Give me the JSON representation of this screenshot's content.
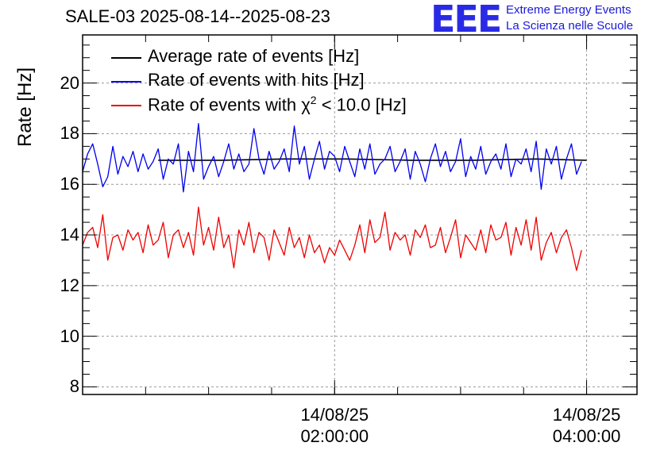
{
  "header": {
    "title": "SALE-03 2025-08-14--2025-08-23",
    "logo": "EEE",
    "org_line1": "Extreme Energy Events",
    "org_line2": "La Scienza nelle Scuole"
  },
  "colors": {
    "average": "#000000",
    "hits": "#0000ee",
    "chi2": "#ee0000",
    "logo": "#2a2ae6"
  },
  "chart_data": {
    "type": "line",
    "title": "SALE-03 2025-08-14--2025-08-23",
    "ylabel": "Rate [Hz]",
    "xlabel": "",
    "ylim": [
      7.7,
      21.9
    ],
    "x_unit": "hours since 2025-08-14 00:00",
    "xlim": [
      0,
      4.4
    ],
    "yticks": [
      "8",
      "10",
      "12",
      "14",
      "16",
      "18",
      "20"
    ],
    "xticks": [
      {
        "date": "14/08/25",
        "time": "02:00:00",
        "hour": 2
      },
      {
        "date": "14/08/25",
        "time": "04:00:00",
        "hour": 4
      }
    ],
    "grid": true,
    "legend_position": "top-left",
    "series": [
      {
        "name": "Average rate of events [Hz]",
        "color": "#000000",
        "x": [
          0.6,
          1.1,
          1.6,
          2.1,
          2.6,
          3.1,
          3.6,
          4.0
        ],
        "values": [
          16.95,
          16.95,
          17.0,
          17.0,
          16.95,
          16.95,
          17.0,
          16.95
        ]
      },
      {
        "name": "Rate of events with hits [Hz]",
        "color": "#0000ee",
        "x_start": 0,
        "x_step": 0.04,
        "values": [
          16.5,
          17.2,
          17.6,
          16.8,
          15.9,
          16.3,
          17.5,
          16.4,
          17.1,
          16.7,
          17.3,
          16.5,
          17.2,
          16.6,
          16.9,
          17.4,
          16.2,
          17.0,
          16.8,
          17.6,
          15.7,
          17.3,
          16.5,
          18.4,
          16.2,
          16.7,
          17.1,
          16.3,
          16.9,
          17.6,
          16.6,
          17.2,
          16.5,
          16.8,
          18.2,
          17.0,
          16.4,
          17.3,
          16.6,
          16.9,
          17.4,
          16.5,
          18.3,
          16.8,
          17.5,
          16.2,
          17.0,
          17.7,
          16.6,
          17.3,
          17.1,
          16.5,
          17.5,
          16.9,
          16.3,
          17.4,
          16.6,
          17.6,
          16.4,
          16.8,
          17.0,
          17.5,
          16.5,
          16.9,
          17.4,
          16.2,
          17.3,
          16.8,
          16.1,
          17.0,
          17.6,
          16.7,
          17.3,
          16.5,
          16.9,
          17.8,
          16.3,
          17.1,
          16.6,
          17.5,
          16.4,
          16.9,
          17.2,
          16.6,
          17.6,
          16.3,
          17.0,
          16.8,
          17.4,
          16.5,
          17.7,
          15.8,
          17.4,
          16.8,
          17.5,
          16.2,
          17.0,
          17.6,
          16.4,
          16.9
        ]
      },
      {
        "name": "Rate of events with χ² < 10.0 [Hz]",
        "label_prefix": "Rate of events with ",
        "label_chi": "χ",
        "label_sup": "2",
        "label_suffix": " < 10.0 [Hz]",
        "color": "#ee0000",
        "x_start": 0,
        "x_step": 0.04,
        "values": [
          13.6,
          14.1,
          14.3,
          13.5,
          14.8,
          13.0,
          13.9,
          14.0,
          13.4,
          14.2,
          13.8,
          14.1,
          13.3,
          14.4,
          13.6,
          13.8,
          14.5,
          13.1,
          14.0,
          14.2,
          13.5,
          14.1,
          13.2,
          15.1,
          13.6,
          14.3,
          13.4,
          14.7,
          13.5,
          14.0,
          12.7,
          14.2,
          13.6,
          14.5,
          13.3,
          14.1,
          13.9,
          13.0,
          14.2,
          13.7,
          13.2,
          14.3,
          13.5,
          13.9,
          13.1,
          14.0,
          13.3,
          13.6,
          12.9,
          13.5,
          13.2,
          13.8,
          13.4,
          13.0,
          13.6,
          14.4,
          13.3,
          14.6,
          13.7,
          13.9,
          14.9,
          13.4,
          14.1,
          13.8,
          14.0,
          13.2,
          14.2,
          13.9,
          14.4,
          13.5,
          13.6,
          14.3,
          13.3,
          13.9,
          14.6,
          13.1,
          14.0,
          13.7,
          13.4,
          14.2,
          13.3,
          14.4,
          13.8,
          13.9,
          14.5,
          13.2,
          14.3,
          13.6,
          14.6,
          13.4,
          14.7,
          13.0,
          13.7,
          14.1,
          13.3,
          13.9,
          14.2,
          13.5,
          12.6,
          13.4
        ]
      }
    ]
  }
}
